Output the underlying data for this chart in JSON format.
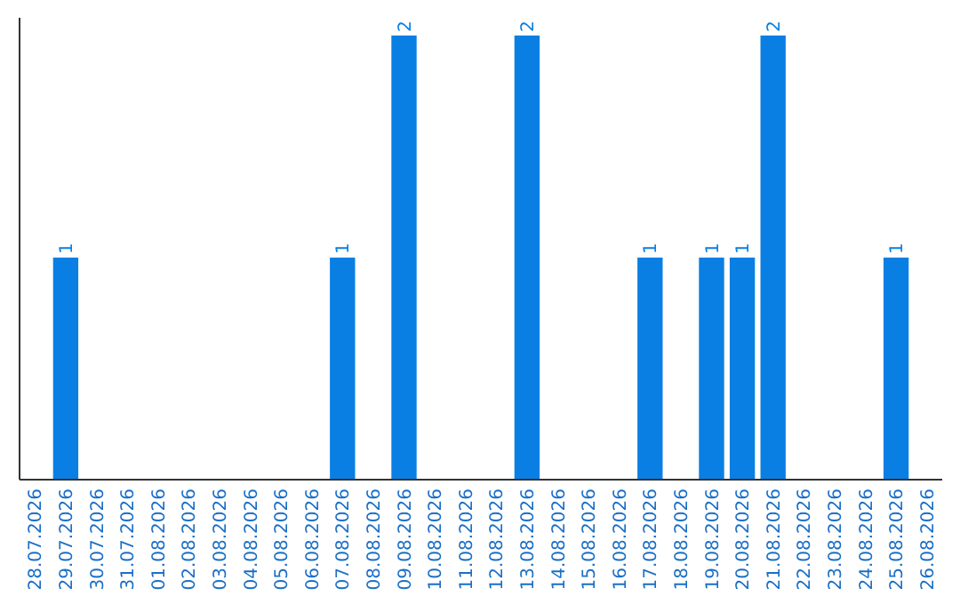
{
  "chart_data": {
    "type": "bar",
    "categories": [
      "28.07.2026",
      "29.07.2026",
      "30.07.2026",
      "31.07.2026",
      "01.08.2026",
      "02.08.2026",
      "03.08.2026",
      "04.08.2026",
      "05.08.2026",
      "06.08.2026",
      "07.08.2026",
      "08.08.2026",
      "09.08.2026",
      "10.08.2026",
      "11.08.2026",
      "12.08.2026",
      "13.08.2026",
      "14.08.2026",
      "15.08.2026",
      "16.08.2026",
      "17.08.2026",
      "18.08.2026",
      "19.08.2026",
      "20.08.2026",
      "21.08.2026",
      "22.08.2026",
      "23.08.2026",
      "24.08.2026",
      "25.08.2026",
      "26.08.2026"
    ],
    "values": [
      0,
      1,
      0,
      0,
      0,
      0,
      0,
      0,
      0,
      0,
      1,
      0,
      2,
      0,
      0,
      0,
      2,
      0,
      0,
      0,
      1,
      0,
      1,
      1,
      2,
      0,
      0,
      0,
      1,
      0
    ],
    "value_labels": [
      null,
      "1",
      null,
      null,
      null,
      null,
      null,
      null,
      null,
      null,
      "1",
      null,
      "2",
      null,
      null,
      null,
      "2",
      null,
      null,
      null,
      "1",
      null,
      "1",
      "1",
      "2",
      null,
      null,
      null,
      "1",
      null
    ],
    "color": "#0a7fe3",
    "ylim": [
      0,
      2.08
    ],
    "tick_labels": "x",
    "grid": false
  }
}
